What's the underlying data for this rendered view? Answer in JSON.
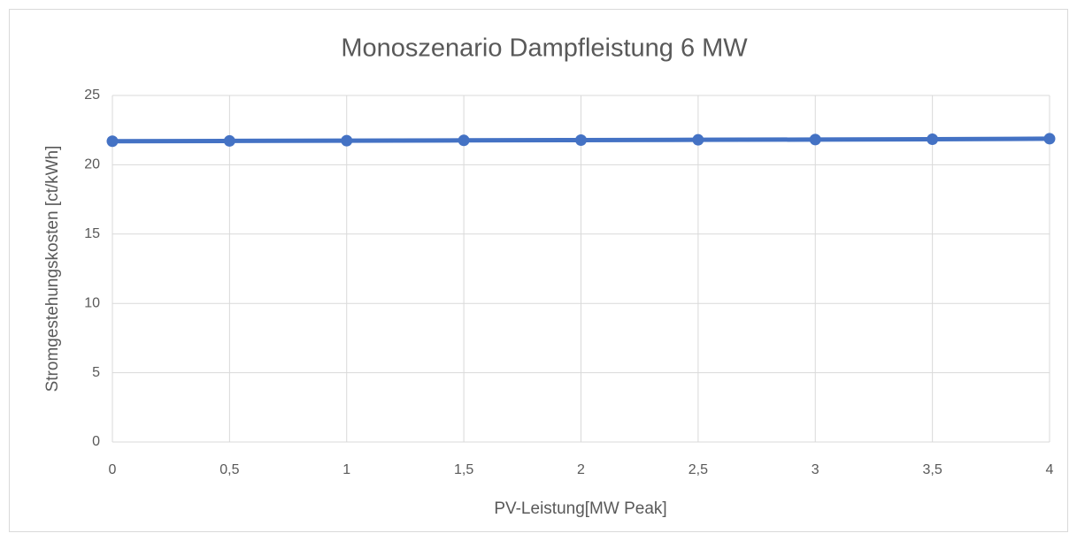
{
  "chart_data": {
    "type": "line",
    "title": "Monoszenario Dampfleistung 6 MW",
    "x_label": "PV-Leistung[MW Peak]",
    "y_label": "Stromgestehungskosten [ct/kWh]",
    "x": [
      0,
      0.5,
      1,
      1.5,
      2,
      2.5,
      3,
      3.5,
      4
    ],
    "series": [
      {
        "color": "#4472c4",
        "values": [
          21.7,
          21.72,
          21.74,
          21.76,
          21.78,
          21.8,
          21.82,
          21.84,
          21.88
        ]
      }
    ],
    "xlim": [
      0,
      4
    ],
    "xticks": [
      0,
      {
        "value": 0.5,
        "label": "0,5"
      },
      1,
      {
        "value": 1.5,
        "label": "1,5"
      },
      2,
      {
        "value": 2.5,
        "label": "2,5"
      },
      3,
      {
        "value": 3.5,
        "label": "3,5"
      },
      4
    ],
    "ylim": [
      0,
      25
    ],
    "yticks": [
      0,
      5,
      10,
      15,
      20,
      25
    ],
    "grid": true
  }
}
